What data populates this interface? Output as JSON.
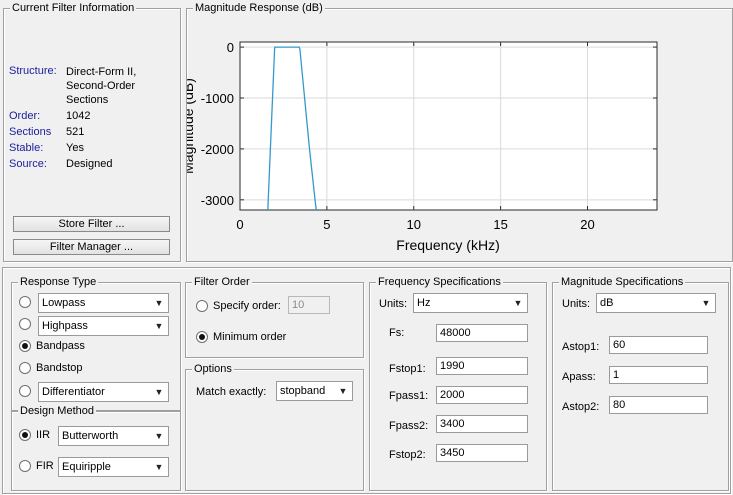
{
  "filter_info": {
    "title": "Current Filter Information",
    "rows": [
      {
        "label": "Structure:",
        "value": "Direct-Form II, Second-Order Sections"
      },
      {
        "label": "Order:",
        "value": "1042"
      },
      {
        "label": "Sections",
        "value": "521"
      },
      {
        "label": "Stable:",
        "value": "Yes"
      },
      {
        "label": "Source:",
        "value": "Designed"
      }
    ],
    "store_button": "Store Filter ...",
    "manager_button": "Filter Manager ..."
  },
  "plot": {
    "title": "Magnitude Response (dB)",
    "xlabel": "Frequency (kHz)",
    "ylabel": "Magnitude (dB)",
    "xticks": [
      "0",
      "5",
      "10",
      "15",
      "20"
    ],
    "yticks": [
      "0",
      "-1000",
      "-2000",
      "-3000"
    ],
    "line_color": "#3399cc"
  },
  "chart_data": {
    "type": "line",
    "title": "Magnitude Response (dB)",
    "xlabel": "Frequency (kHz)",
    "ylabel": "Magnitude (dB)",
    "xlim": [
      0,
      24
    ],
    "ylim": [
      -3200,
      100
    ],
    "grid": true,
    "series": [
      {
        "x": [
          1.6,
          1.99,
          2.0,
          3.4,
          3.45,
          4.0,
          4.35,
          4.4
        ],
        "y": [
          -3200,
          -40,
          0,
          0,
          -40,
          -2000,
          -3100,
          -3200
        ]
      }
    ]
  },
  "response_type": {
    "title": "Response Type",
    "options": [
      {
        "label": "Lowpass",
        "type": "select"
      },
      {
        "label": "Highpass",
        "type": "select"
      },
      {
        "label": "Bandpass",
        "type": "radio"
      },
      {
        "label": "Bandstop",
        "type": "radio"
      },
      {
        "label": "Differentiator",
        "type": "select"
      }
    ]
  },
  "design_method": {
    "title": "Design Method",
    "iir_label": "IIR",
    "iir_value": "Butterworth",
    "fir_label": "FIR",
    "fir_value": "Equiripple"
  },
  "filter_order": {
    "title": "Filter Order",
    "specify_label": "Specify order:",
    "specify_value": "10",
    "minimum_label": "Minimum order"
  },
  "options": {
    "title": "Options",
    "match_label": "Match exactly:",
    "match_value": "stopband"
  },
  "freq_specs": {
    "title": "Frequency Specifications",
    "units_label": "Units:",
    "units_value": "Hz",
    "fields": [
      {
        "label": "Fs:",
        "value": "48000"
      },
      {
        "label": "Fstop1:",
        "value": "1990"
      },
      {
        "label": "Fpass1:",
        "value": "2000"
      },
      {
        "label": "Fpass2:",
        "value": "3400"
      },
      {
        "label": "Fstop2:",
        "value": "3450"
      }
    ]
  },
  "mag_specs": {
    "title": "Magnitude Specifications",
    "units_label": "Units:",
    "units_value": "dB",
    "fields": [
      {
        "label": "Astop1:",
        "value": "60"
      },
      {
        "label": "Apass:",
        "value": "1"
      },
      {
        "label": "Astop2:",
        "value": "80"
      }
    ]
  }
}
